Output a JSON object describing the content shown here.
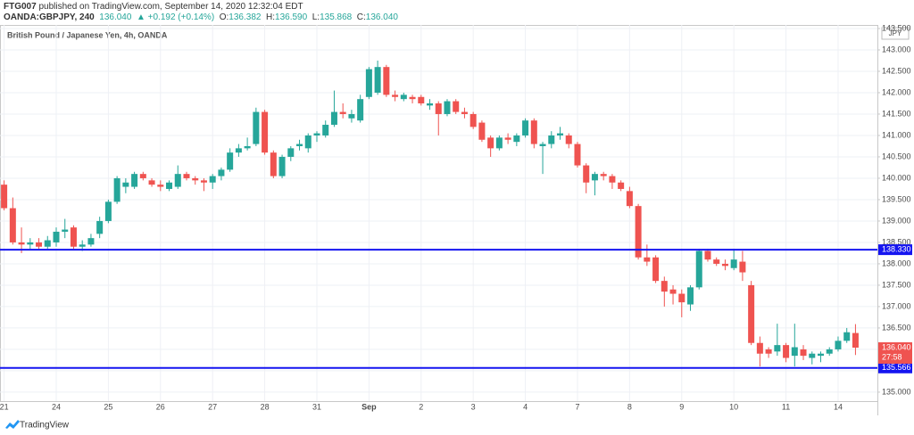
{
  "header": {
    "author": "FTG007",
    "published": "published on TradingView.com, September 14, 2020 12:32:04 EDT",
    "symbol": "OANDA:GBPJPY, 240",
    "change": "▲ +0.192 (+0.14%)",
    "ohlc_labels": [
      "O:",
      "H:",
      "L:",
      "C:"
    ],
    "watermark": "TradingView"
  },
  "chart_data": {
    "type": "candlestick",
    "title": "British Pound / Japanese Yen, 4h, OANDA",
    "currency": "JPY",
    "categories": [
      "21",
      null,
      null,
      null,
      null,
      null,
      "24",
      null,
      null,
      null,
      null,
      null,
      "25",
      null,
      null,
      null,
      null,
      null,
      "26",
      null,
      null,
      null,
      null,
      null,
      "27",
      null,
      null,
      null,
      null,
      null,
      "28",
      null,
      null,
      null,
      null,
      null,
      "31",
      null,
      null,
      null,
      null,
      null,
      "Sep",
      null,
      null,
      null,
      null,
      null,
      "2",
      null,
      null,
      null,
      null,
      null,
      "3",
      null,
      null,
      null,
      null,
      null,
      "4",
      null,
      null,
      null,
      null,
      null,
      "7",
      null,
      null,
      null,
      null,
      null,
      "8",
      null,
      null,
      null,
      null,
      null,
      "9",
      null,
      null,
      null,
      null,
      null,
      "10",
      null,
      null,
      null,
      null,
      null,
      "11",
      null,
      null,
      null,
      null,
      null,
      "14",
      null,
      null
    ],
    "open": [
      139.85,
      139.3,
      138.5,
      138.45,
      138.5,
      138.4,
      138.5,
      138.75,
      138.85,
      138.4,
      138.45,
      138.7,
      139.0,
      139.45,
      139.8,
      139.8,
      140.1,
      139.95,
      139.85,
      139.75,
      139.8,
      140.1,
      140.0,
      139.95,
      139.9,
      140.05,
      140.2,
      140.6,
      140.7,
      140.8,
      141.55,
      140.6,
      140.05,
      140.5,
      140.75,
      140.7,
      141.0,
      141.0,
      141.25,
      141.55,
      141.4,
      141.35,
      141.9,
      142.0,
      142.6,
      141.95,
      141.85,
      141.9,
      141.9,
      141.7,
      141.75,
      141.5,
      141.8,
      141.55,
      141.5,
      141.3,
      140.95,
      140.7,
      140.95,
      140.85,
      141.0,
      141.35,
      140.75,
      140.8,
      141.0,
      141.0,
      140.8,
      140.3,
      139.95,
      140.1,
      140.05,
      139.9,
      139.7,
      139.35,
      138.15,
      138.15,
      137.6,
      137.4,
      137.3,
      137.05,
      137.45,
      138.3,
      138.1,
      138.0,
      137.9,
      138.05,
      137.5,
      136.15,
      136.0,
      135.95,
      136.1,
      135.85,
      136.0,
      135.8,
      135.85,
      135.9,
      136.0,
      136.2,
      136.382
    ],
    "high": [
      139.95,
      139.55,
      138.85,
      138.6,
      138.6,
      138.65,
      138.85,
      139.05,
      138.9,
      138.55,
      138.7,
      139.1,
      139.5,
      140.05,
      140.0,
      140.15,
      140.15,
      140.0,
      139.95,
      139.95,
      140.3,
      140.15,
      140.05,
      140.0,
      140.1,
      140.25,
      140.7,
      140.8,
      140.95,
      141.65,
      141.6,
      140.65,
      140.55,
      140.75,
      140.9,
      141.05,
      141.1,
      141.35,
      142.05,
      141.75,
      141.6,
      141.95,
      142.6,
      142.75,
      142.65,
      142.05,
      142.0,
      141.95,
      141.95,
      141.85,
      141.8,
      141.85,
      141.85,
      141.65,
      141.55,
      141.35,
      141.0,
      141.0,
      141.05,
      141.05,
      141.4,
      141.4,
      140.85,
      141.1,
      141.2,
      141.05,
      140.85,
      140.35,
      140.15,
      140.15,
      140.1,
      139.95,
      139.8,
      139.4,
      138.45,
      138.2,
      137.7,
      137.5,
      137.4,
      137.5,
      138.35,
      138.35,
      138.15,
      138.1,
      138.35,
      138.3,
      137.6,
      136.3,
      136.05,
      136.6,
      136.15,
      136.6,
      136.1,
      135.95,
      135.95,
      136.05,
      136.3,
      136.5,
      136.59
    ],
    "low": [
      139.25,
      138.45,
      138.25,
      138.35,
      138.35,
      138.35,
      138.4,
      138.6,
      138.35,
      138.3,
      138.4,
      138.6,
      138.95,
      139.4,
      139.65,
      139.75,
      139.95,
      139.8,
      139.7,
      139.7,
      139.75,
      139.95,
      139.85,
      139.7,
      139.75,
      139.95,
      140.15,
      140.5,
      140.65,
      140.75,
      140.55,
      140.0,
      140.0,
      140.4,
      140.65,
      140.6,
      140.85,
      140.95,
      141.2,
      141.4,
      141.3,
      141.3,
      141.85,
      141.95,
      141.9,
      141.8,
      141.8,
      141.75,
      141.7,
      141.6,
      141.0,
      141.45,
      141.5,
      141.4,
      141.15,
      140.85,
      140.5,
      140.65,
      140.8,
      140.75,
      140.95,
      140.7,
      140.1,
      140.7,
      140.9,
      140.7,
      140.25,
      139.65,
      139.6,
      139.95,
      139.75,
      139.7,
      139.3,
      138.1,
      137.95,
      137.55,
      137.0,
      137.05,
      136.75,
      136.9,
      137.4,
      138.05,
      137.95,
      137.85,
      137.85,
      137.6,
      136.1,
      135.6,
      135.8,
      135.85,
      135.7,
      135.6,
      135.75,
      135.65,
      135.7,
      135.85,
      135.95,
      136.15,
      135.868
    ],
    "close": [
      139.3,
      138.5,
      138.45,
      138.5,
      138.4,
      138.55,
      138.75,
      138.8,
      138.4,
      138.45,
      138.6,
      139.0,
      139.45,
      140.0,
      139.9,
      140.1,
      140.0,
      139.85,
      139.8,
      139.9,
      140.1,
      140.0,
      139.95,
      139.9,
      140.05,
      140.2,
      140.6,
      140.7,
      140.75,
      141.55,
      140.6,
      140.05,
      140.5,
      140.7,
      140.8,
      141.0,
      141.05,
      141.25,
      141.55,
      141.5,
      141.5,
      141.85,
      142.55,
      142.6,
      141.95,
      141.9,
      141.95,
      141.85,
      141.75,
      141.75,
      141.5,
      141.8,
      141.55,
      141.5,
      141.2,
      140.9,
      140.7,
      140.95,
      140.9,
      141.0,
      141.35,
      140.8,
      140.8,
      141.0,
      141.05,
      140.8,
      140.3,
      139.9,
      140.1,
      140.05,
      139.9,
      139.75,
      139.35,
      138.15,
      138.05,
      137.6,
      137.35,
      137.3,
      137.1,
      137.45,
      138.3,
      138.1,
      138.0,
      137.95,
      138.1,
      137.8,
      136.15,
      135.9,
      135.9,
      136.1,
      135.8,
      136.05,
      135.85,
      135.9,
      135.9,
      136.0,
      136.2,
      136.4,
      136.04
    ],
    "last_labels": {
      "open": "136.382",
      "high": "136.590",
      "low": "135.868",
      "close": "136.040"
    },
    "countdown": "27:58",
    "up_color": "#26a69a",
    "down_color": "#ef5350",
    "ylim": [
      134.79,
      143.583
    ],
    "yticks": [
      {
        "value": 135,
        "label": "135.000"
      },
      {
        "value": 135.5,
        "label": "135.500"
      },
      {
        "value": 136,
        "label": "136.000"
      },
      {
        "value": 136.5,
        "label": "136.500"
      },
      {
        "value": 137,
        "label": "137.000"
      },
      {
        "value": 137.5,
        "label": "137.500"
      },
      {
        "value": 138,
        "label": "138.000"
      },
      {
        "value": 138.5,
        "label": "138.500"
      },
      {
        "value": 139,
        "label": "139.000"
      },
      {
        "value": 139.5,
        "label": "139.500"
      },
      {
        "value": 140,
        "label": "140.000"
      },
      {
        "value": 140.5,
        "label": "140.500"
      },
      {
        "value": 141,
        "label": "141.000"
      },
      {
        "value": 141.5,
        "label": "141.500"
      },
      {
        "value": 142,
        "label": "142.000"
      },
      {
        "value": 142.5,
        "label": "142.500"
      },
      {
        "value": 143,
        "label": "143.000"
      },
      {
        "value": 143.5,
        "label": "143.500"
      }
    ],
    "hlines": [
      {
        "value": 138.33,
        "label": "138.330",
        "color": "#1515f0"
      },
      {
        "value": 135.566,
        "label": "135.566",
        "color": "#1515f0"
      }
    ],
    "grid": true
  }
}
